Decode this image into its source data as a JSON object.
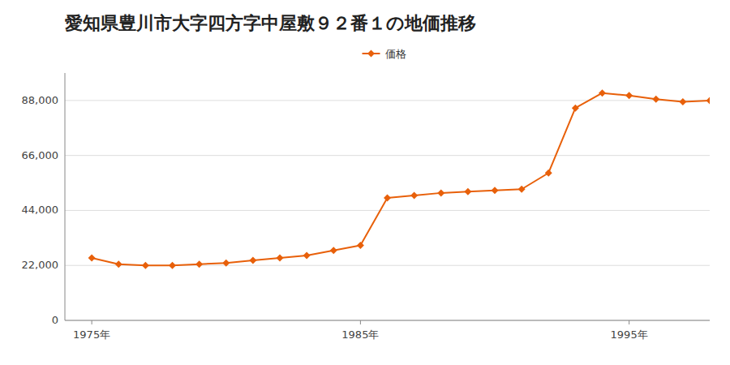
{
  "chart_data": {
    "type": "line",
    "title": "愛知県豊川市大字四方字中屋敷９２番１の地価推移",
    "x": [
      1975,
      1976,
      1977,
      1978,
      1979,
      1980,
      1981,
      1982,
      1983,
      1984,
      1985,
      1986,
      1987,
      1988,
      1989,
      1990,
      1991,
      1992,
      1993,
      1994,
      1995,
      1996,
      1997,
      1998
    ],
    "series": [
      {
        "name": "価格",
        "color": "#e8600a",
        "marker": "diamond",
        "values": [
          25000,
          22500,
          22000,
          22000,
          22500,
          23000,
          24000,
          25000,
          26000,
          28000,
          30000,
          49000,
          50000,
          51000,
          51500,
          52000,
          52500,
          59000,
          85000,
          91000,
          90000,
          88500,
          87500,
          88000
        ]
      }
    ],
    "xlim": [
      1974,
      1998
    ],
    "ylim": [
      0,
      99000
    ],
    "xticks": [
      {
        "value": 1975,
        "label": "1975年"
      },
      {
        "value": 1985,
        "label": "1985年"
      },
      {
        "value": 1995,
        "label": "1995年"
      }
    ],
    "yticks": [
      0,
      {
        "value": 22000,
        "label": "22,000"
      },
      {
        "value": 44000,
        "label": "44,000"
      },
      {
        "value": 66000,
        "label": "66,000"
      },
      {
        "value": 88000,
        "label": "88,000"
      }
    ],
    "grid": true,
    "legend": "top"
  }
}
